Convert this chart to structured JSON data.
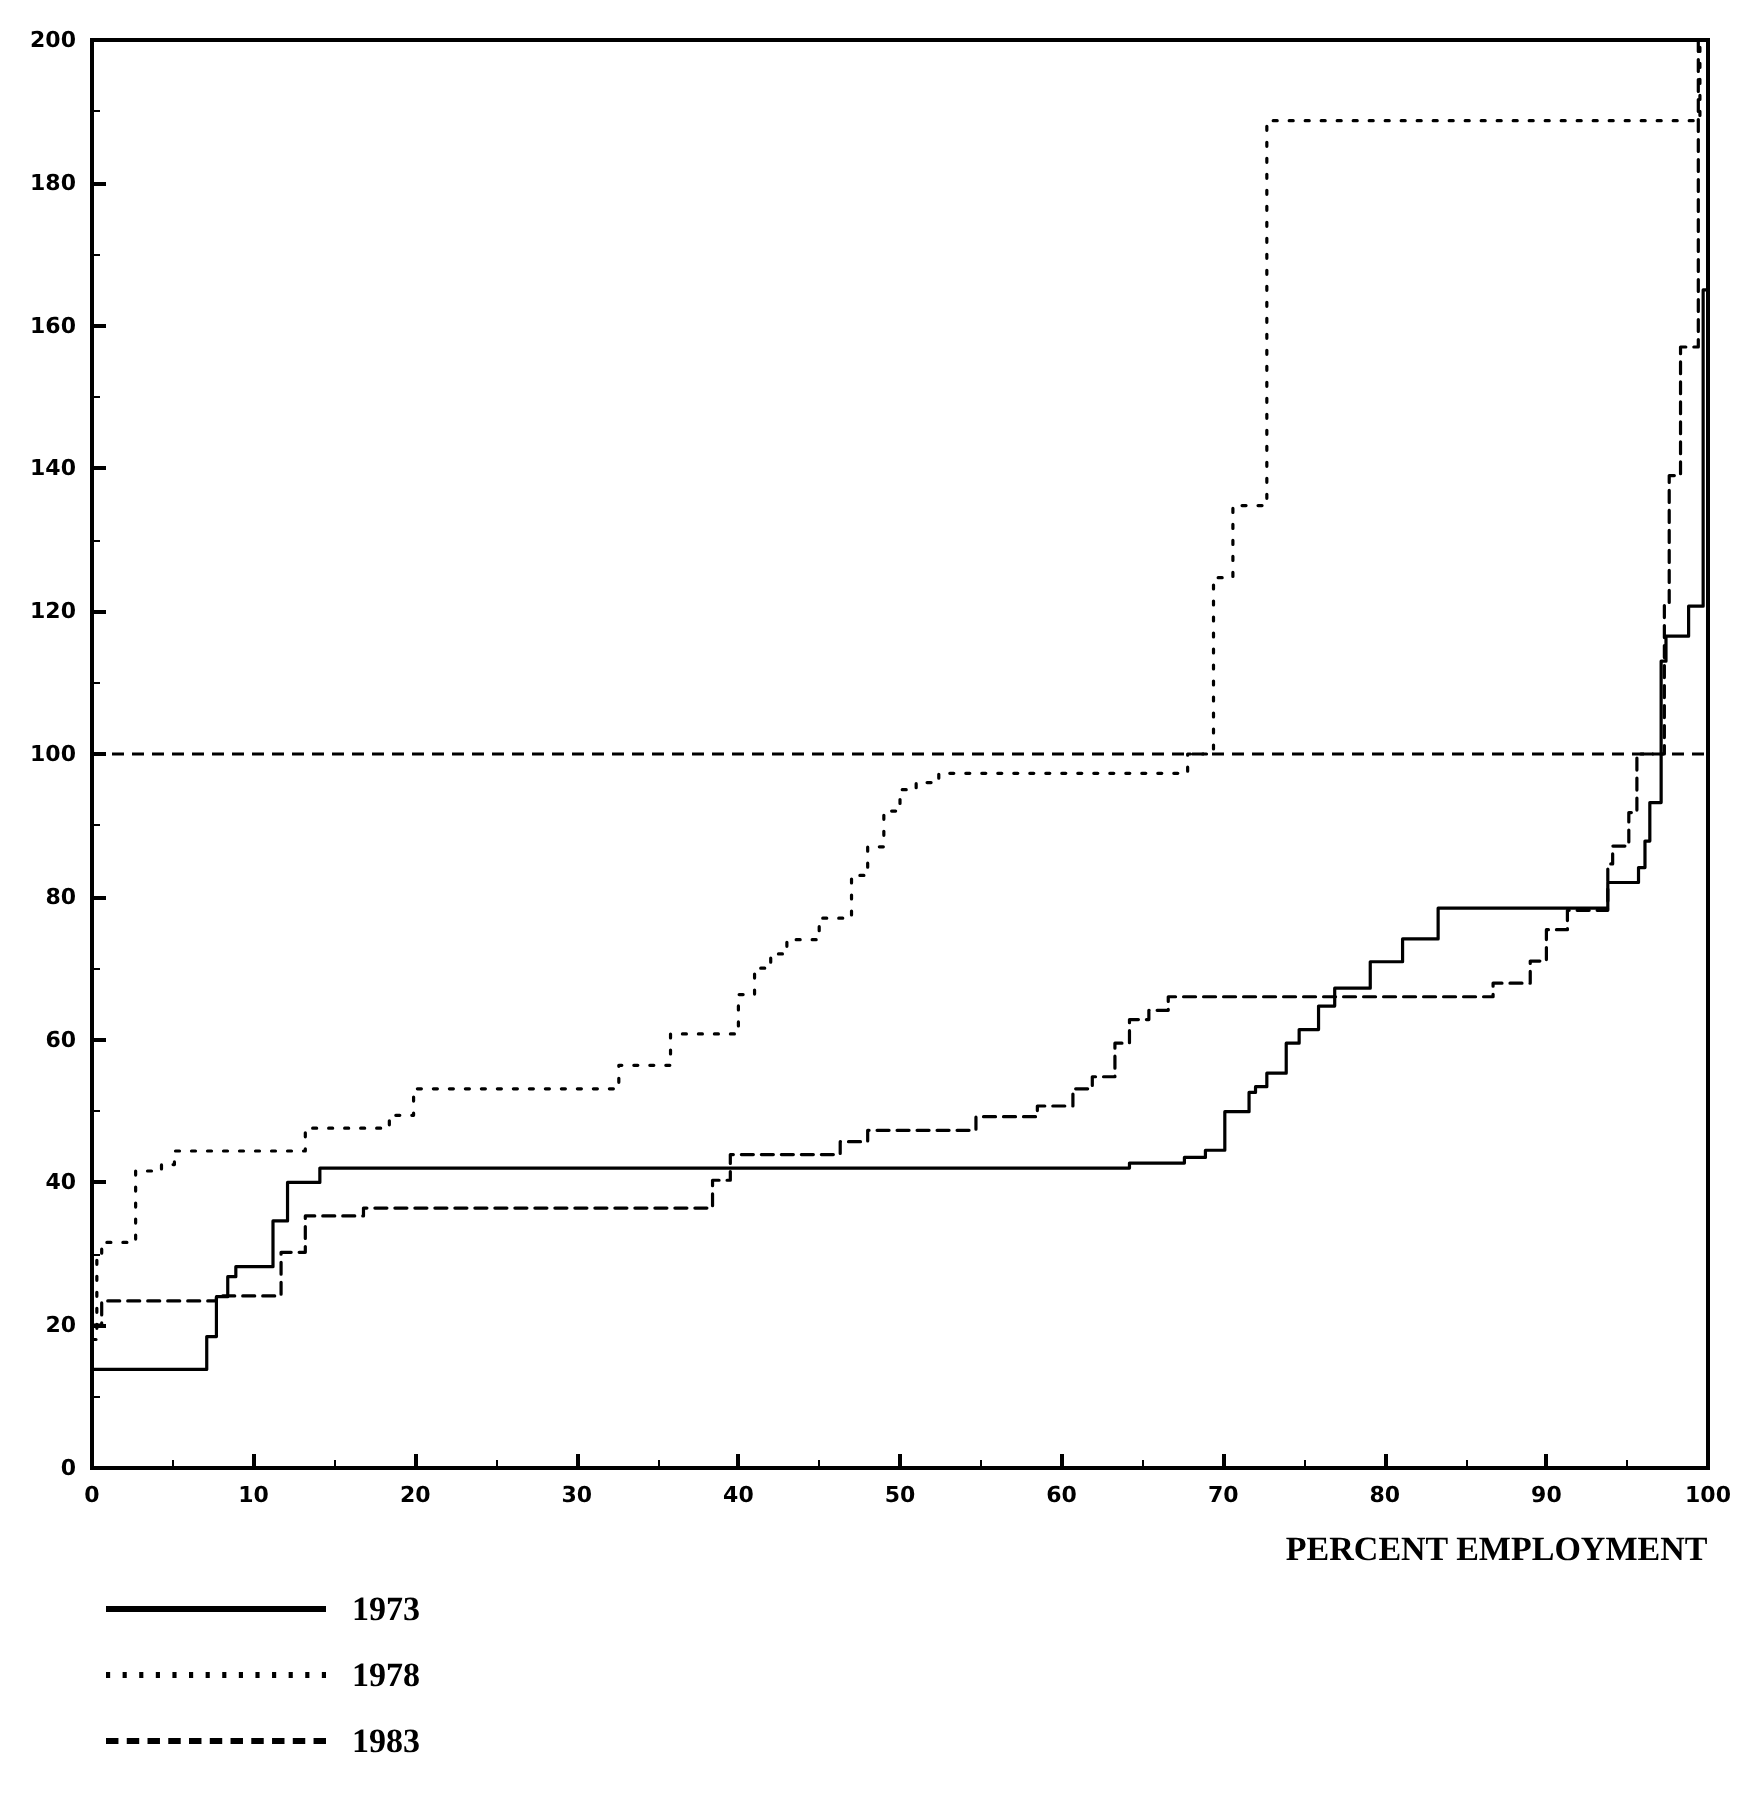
{
  "chart_data": {
    "type": "step",
    "xlabel": "PERCENT EMPLOYMENT",
    "xlim": [
      0,
      100
    ],
    "xticks": [
      0,
      10,
      20,
      30,
      40,
      50,
      60,
      70,
      80,
      90,
      100
    ],
    "ylim": [
      0,
      200
    ],
    "yticks": [
      0,
      20,
      40,
      60,
      80,
      100,
      120,
      140,
      160,
      180,
      200
    ],
    "grid": false,
    "legend": "bottom left",
    "ref_lines": [
      {
        "axis": "y",
        "value": 100,
        "line_style": "dashed",
        "color": "#000000"
      }
    ],
    "series": [
      {
        "name": "1973",
        "color": "#000000",
        "line_style": "solid",
        "x": [
          0,
          7.1,
          7.7,
          8.4,
          8.9,
          11.2,
          12.1,
          14.1,
          64.2,
          67.6,
          68.9,
          70.1,
          71.6,
          72,
          72.7,
          73.9,
          74.7,
          75.9,
          76.9,
          79.1,
          81.1,
          83.3,
          93.8,
          95.7,
          96.1,
          96.4,
          97.1,
          97.4,
          98.8,
          99.7,
          100
        ],
        "values": [
          13.8,
          18.4,
          24,
          26.8,
          28.2,
          34.6,
          40,
          42,
          42.7,
          43.5,
          44.5,
          49.9,
          52.6,
          53.4,
          55.3,
          59.5,
          61.4,
          64.7,
          67.2,
          70.9,
          74.1,
          78.4,
          82,
          84.1,
          87.8,
          93.2,
          113,
          116.5,
          120.7,
          165,
          200
        ]
      },
      {
        "name": "1978",
        "color": "#000000",
        "line_style": "dotted",
        "x": [
          0,
          0.3,
          0.6,
          2.7,
          4.3,
          5.1,
          13.2,
          18.4,
          19.9,
          32.6,
          35.8,
          40,
          41,
          42,
          43,
          45,
          47,
          48,
          49,
          50,
          51,
          52.4,
          67.8,
          69.4,
          70.6,
          72.7,
          99.5
        ],
        "values": [
          18,
          30,
          31.6,
          41.6,
          42.5,
          44.4,
          47.6,
          49.4,
          53.1,
          56.4,
          60.8,
          66.3,
          70,
          72,
          74,
          77,
          83,
          87,
          92,
          95,
          96,
          97.3,
          100,
          124.7,
          134.8,
          188.7,
          200
        ]
      },
      {
        "name": "1983",
        "color": "#000000",
        "line_style": "dashed",
        "x": [
          0,
          0.6,
          7.7,
          11.7,
          13.2,
          16.8,
          38.4,
          39.5,
          46.3,
          48,
          54.7,
          58.5,
          60.7,
          61.9,
          63.3,
          64.2,
          65.4,
          66.6,
          86.7,
          89,
          90,
          91.3,
          93.8,
          94.1,
          95.1,
          95.6,
          97.3,
          97.6,
          98.3,
          99.4
        ],
        "values": [
          20,
          23.4,
          24.1,
          30.2,
          35.3,
          36.4,
          40.3,
          43.9,
          45.7,
          47.3,
          49.2,
          50.7,
          53.1,
          54.8,
          59.5,
          62.8,
          64.1,
          66,
          67.9,
          71,
          75.4,
          78.1,
          84.6,
          87.1,
          91.8,
          100,
          121,
          139,
          157,
          200
        ]
      }
    ]
  }
}
